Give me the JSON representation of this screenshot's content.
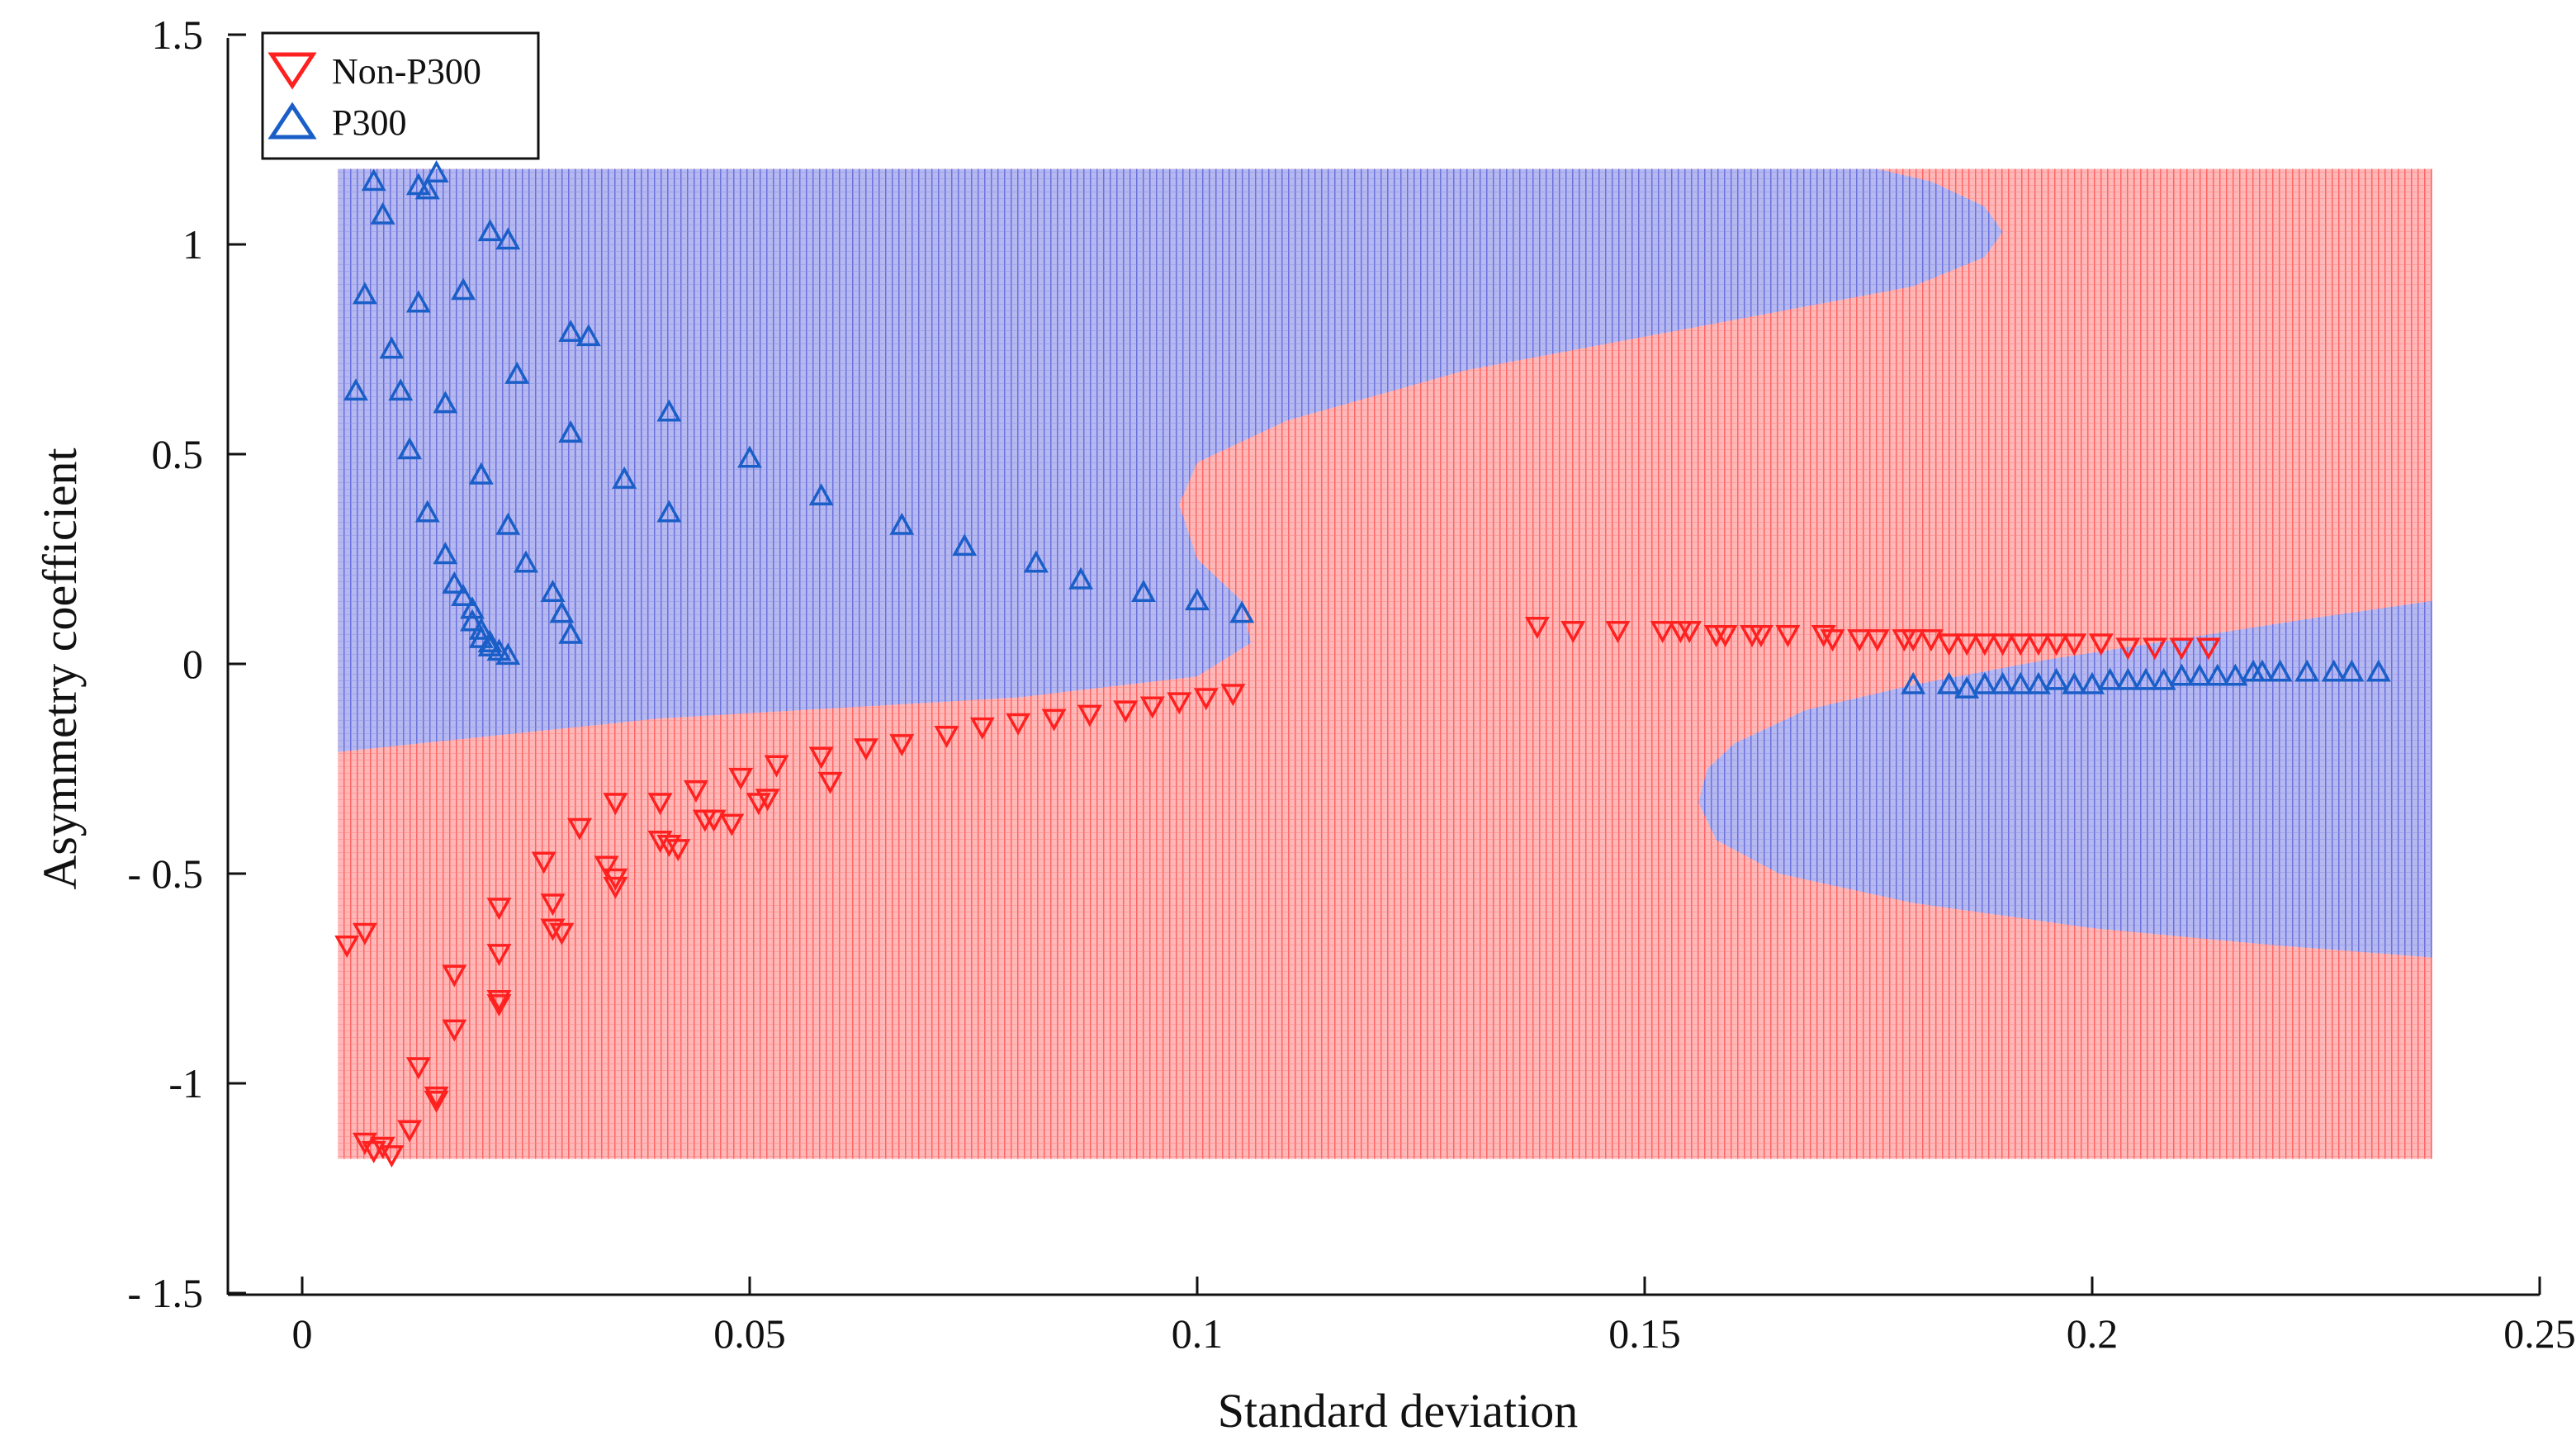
{
  "chart_data": {
    "type": "scatter",
    "title": "",
    "xlabel": "Standard deviation",
    "ylabel": "Asymmetry coefficient",
    "xlim": [
      -0.017,
      0.25
    ],
    "ylim": [
      -1.5,
      1.5
    ],
    "x_ticks": [
      0,
      0.05,
      0.1,
      0.15,
      0.2,
      0.25
    ],
    "y_ticks": [
      1.5,
      1,
      0.5,
      0,
      -0.5,
      -1,
      -1.5
    ],
    "x_tick_labels": [
      "0",
      "0.05",
      "0.1",
      "0.15",
      "0.2",
      "0.25"
    ],
    "y_tick_labels": [
      "1.5",
      "1",
      "0.5",
      "0",
      "- 0.5",
      "-1",
      "- 1.5"
    ],
    "grid": false,
    "legend_position": "top-left",
    "colors": {
      "non_p300": "#ff2020",
      "p300": "#1a5fc8",
      "region_non_p300": "#ff8c8c",
      "region_p300": "#8b90e6"
    },
    "decision_region": {
      "x_range": [
        0.004,
        0.238
      ],
      "y_range": [
        -1.18,
        1.18
      ],
      "background_class": "Non-P300",
      "overlay_class": "P300"
    },
    "series": [
      {
        "name": "Non-P300",
        "marker": "triangle-down",
        "points": [
          [
            0.005,
            -0.67
          ],
          [
            0.007,
            -0.64
          ],
          [
            0.007,
            -1.14
          ],
          [
            0.008,
            -1.16
          ],
          [
            0.009,
            -1.15
          ],
          [
            0.01,
            -1.17
          ],
          [
            0.012,
            -1.11
          ],
          [
            0.013,
            -0.96
          ],
          [
            0.015,
            -1.03
          ],
          [
            0.015,
            -1.04
          ],
          [
            0.017,
            -0.87
          ],
          [
            0.017,
            -0.74
          ],
          [
            0.022,
            -0.58
          ],
          [
            0.022,
            -0.69
          ],
          [
            0.022,
            -0.8
          ],
          [
            0.022,
            -0.81
          ],
          [
            0.027,
            -0.47
          ],
          [
            0.028,
            -0.57
          ],
          [
            0.028,
            -0.63
          ],
          [
            0.029,
            -0.64
          ],
          [
            0.031,
            -0.39
          ],
          [
            0.034,
            -0.48
          ],
          [
            0.035,
            -0.51
          ],
          [
            0.035,
            -0.53
          ],
          [
            0.035,
            -0.33
          ],
          [
            0.04,
            -0.33
          ],
          [
            0.04,
            -0.42
          ],
          [
            0.041,
            -0.43
          ],
          [
            0.042,
            -0.44
          ],
          [
            0.044,
            -0.3
          ],
          [
            0.045,
            -0.37
          ],
          [
            0.046,
            -0.37
          ],
          [
            0.048,
            -0.38
          ],
          [
            0.049,
            -0.27
          ],
          [
            0.051,
            -0.33
          ],
          [
            0.052,
            -0.32
          ],
          [
            0.053,
            -0.24
          ],
          [
            0.058,
            -0.22
          ],
          [
            0.059,
            -0.28
          ],
          [
            0.063,
            -0.2
          ],
          [
            0.067,
            -0.19
          ],
          [
            0.072,
            -0.17
          ],
          [
            0.076,
            -0.15
          ],
          [
            0.08,
            -0.14
          ],
          [
            0.084,
            -0.13
          ],
          [
            0.088,
            -0.12
          ],
          [
            0.092,
            -0.11
          ],
          [
            0.095,
            -0.1
          ],
          [
            0.098,
            -0.09
          ],
          [
            0.101,
            -0.08
          ],
          [
            0.104,
            -0.07
          ],
          [
            0.138,
            0.09
          ],
          [
            0.142,
            0.08
          ],
          [
            0.147,
            0.08
          ],
          [
            0.152,
            0.08
          ],
          [
            0.154,
            0.08
          ],
          [
            0.155,
            0.08
          ],
          [
            0.158,
            0.07
          ],
          [
            0.159,
            0.07
          ],
          [
            0.162,
            0.07
          ],
          [
            0.163,
            0.07
          ],
          [
            0.166,
            0.07
          ],
          [
            0.17,
            0.07
          ],
          [
            0.171,
            0.06
          ],
          [
            0.174,
            0.06
          ],
          [
            0.176,
            0.06
          ],
          [
            0.179,
            0.06
          ],
          [
            0.18,
            0.06
          ],
          [
            0.182,
            0.06
          ],
          [
            0.184,
            0.05
          ],
          [
            0.186,
            0.05
          ],
          [
            0.188,
            0.05
          ],
          [
            0.19,
            0.05
          ],
          [
            0.192,
            0.05
          ],
          [
            0.194,
            0.05
          ],
          [
            0.196,
            0.05
          ],
          [
            0.198,
            0.05
          ],
          [
            0.201,
            0.05
          ],
          [
            0.204,
            0.04
          ],
          [
            0.207,
            0.04
          ],
          [
            0.21,
            0.04
          ],
          [
            0.213,
            0.04
          ]
        ]
      },
      {
        "name": "P300",
        "marker": "triangle-up",
        "points": [
          [
            0.008,
            1.15
          ],
          [
            0.009,
            1.07
          ],
          [
            0.013,
            1.14
          ],
          [
            0.014,
            1.13
          ],
          [
            0.015,
            1.17
          ],
          [
            0.007,
            0.88
          ],
          [
            0.013,
            0.86
          ],
          [
            0.01,
            0.75
          ],
          [
            0.006,
            0.65
          ],
          [
            0.011,
            0.65
          ],
          [
            0.012,
            0.51
          ],
          [
            0.014,
            0.36
          ],
          [
            0.016,
            0.26
          ],
          [
            0.016,
            0.62
          ],
          [
            0.018,
            0.89
          ],
          [
            0.021,
            1.03
          ],
          [
            0.023,
            1.01
          ],
          [
            0.024,
            0.69
          ],
          [
            0.03,
            0.79
          ],
          [
            0.032,
            0.78
          ],
          [
            0.02,
            0.45
          ],
          [
            0.023,
            0.33
          ],
          [
            0.025,
            0.24
          ],
          [
            0.028,
            0.17
          ],
          [
            0.029,
            0.12
          ],
          [
            0.03,
            0.07
          ],
          [
            0.03,
            0.55
          ],
          [
            0.036,
            0.44
          ],
          [
            0.041,
            0.6
          ],
          [
            0.041,
            0.36
          ],
          [
            0.05,
            0.49
          ],
          [
            0.058,
            0.4
          ],
          [
            0.067,
            0.33
          ],
          [
            0.074,
            0.28
          ],
          [
            0.082,
            0.24
          ],
          [
            0.087,
            0.2
          ],
          [
            0.094,
            0.17
          ],
          [
            0.1,
            0.15
          ],
          [
            0.105,
            0.12
          ],
          [
            0.017,
            0.19
          ],
          [
            0.018,
            0.16
          ],
          [
            0.019,
            0.13
          ],
          [
            0.019,
            0.1
          ],
          [
            0.02,
            0.08
          ],
          [
            0.02,
            0.06
          ],
          [
            0.021,
            0.05
          ],
          [
            0.021,
            0.04
          ],
          [
            0.022,
            0.03
          ],
          [
            0.023,
            0.02
          ],
          [
            0.18,
            -0.05
          ],
          [
            0.184,
            -0.05
          ],
          [
            0.186,
            -0.06
          ],
          [
            0.188,
            -0.05
          ],
          [
            0.19,
            -0.05
          ],
          [
            0.192,
            -0.05
          ],
          [
            0.194,
            -0.05
          ],
          [
            0.196,
            -0.04
          ],
          [
            0.198,
            -0.05
          ],
          [
            0.2,
            -0.05
          ],
          [
            0.202,
            -0.04
          ],
          [
            0.204,
            -0.04
          ],
          [
            0.206,
            -0.04
          ],
          [
            0.208,
            -0.04
          ],
          [
            0.21,
            -0.03
          ],
          [
            0.212,
            -0.03
          ],
          [
            0.214,
            -0.03
          ],
          [
            0.216,
            -0.03
          ],
          [
            0.218,
            -0.02
          ],
          [
            0.219,
            -0.02
          ],
          [
            0.221,
            -0.02
          ],
          [
            0.224,
            -0.02
          ],
          [
            0.227,
            -0.02
          ],
          [
            0.229,
            -0.02
          ],
          [
            0.232,
            -0.02
          ]
        ]
      }
    ]
  }
}
